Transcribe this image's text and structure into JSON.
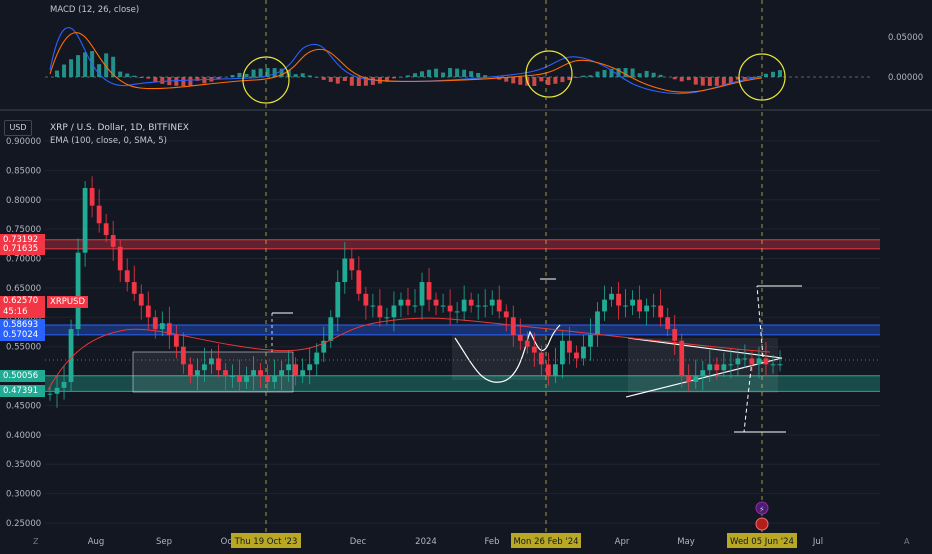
{
  "macd": {
    "title": "MACD (12, 26, close)",
    "ticks": [
      {
        "label": "0.05000",
        "value": 0.05
      },
      {
        "label": "0.00000",
        "value": 0.0
      }
    ]
  },
  "chart_data": {
    "type": "candlestick",
    "symbol": "XRP / U.S. Dollar, 1D, BITFINEX",
    "indicator": "EMA (100, close, 0, SMA, 5)",
    "currency": "USD",
    "ylim": [
      0.23,
      0.94
    ],
    "y_ticks": [
      "0.90000",
      "0.85000",
      "0.80000",
      "0.75000",
      "0.70000",
      "0.65000",
      "0.60000",
      "0.55000",
      "0.50000",
      "0.45000",
      "0.40000",
      "0.35000",
      "0.30000",
      "0.25000"
    ],
    "x_ticks": [
      "Aug",
      "Sep",
      "Oct",
      "Dec",
      "2024",
      "Feb",
      "Apr",
      "May",
      "Jul"
    ],
    "highlighted_dates": [
      "Thu 19 Oct '23",
      "Mon 26 Feb '24",
      "Wed 05 Jun '24"
    ],
    "price_tags": [
      {
        "label": "0.73192",
        "value": 0.7319,
        "color": "#f23645"
      },
      {
        "label": "0.71635",
        "value": 0.7164,
        "color": "#f23645"
      },
      {
        "label": "0.58693",
        "value": 0.5869,
        "color": "#2962ff"
      },
      {
        "label": "0.57024",
        "value": 0.5702,
        "color": "#2962ff"
      },
      {
        "label": "0.50056",
        "value": 0.5006,
        "color": "#22ab94"
      },
      {
        "label": "0.47391",
        "value": 0.4739,
        "color": "#22ab94"
      }
    ],
    "last_price": {
      "label": "0.62570",
      "countdown": "45:16",
      "symbol": "XRPUSD",
      "value": 0.6257
    },
    "zones": [
      {
        "name": "resistance",
        "from": 0.7164,
        "to": 0.7319,
        "color": "#f23645"
      },
      {
        "name": "mid",
        "from": 0.5702,
        "to": 0.5869,
        "color": "#2962ff"
      },
      {
        "name": "support",
        "from": 0.4739,
        "to": 0.5006,
        "color": "#22ab94"
      }
    ],
    "closes": [
      0.47,
      0.48,
      0.49,
      0.58,
      0.71,
      0.82,
      0.79,
      0.76,
      0.74,
      0.72,
      0.68,
      0.66,
      0.64,
      0.62,
      0.6,
      0.58,
      0.59,
      0.57,
      0.55,
      0.52,
      0.5,
      0.51,
      0.52,
      0.53,
      0.51,
      0.5,
      0.5,
      0.49,
      0.5,
      0.51,
      0.5,
      0.49,
      0.5,
      0.51,
      0.52,
      0.5,
      0.51,
      0.52,
      0.54,
      0.56,
      0.6,
      0.66,
      0.7,
      0.68,
      0.64,
      0.62,
      0.62,
      0.6,
      0.6,
      0.62,
      0.63,
      0.62,
      0.62,
      0.66,
      0.63,
      0.62,
      0.62,
      0.61,
      0.61,
      0.63,
      0.62,
      0.62,
      0.62,
      0.63,
      0.61,
      0.6,
      0.57,
      0.56,
      0.55,
      0.54,
      0.52,
      0.5,
      0.52,
      0.56,
      0.54,
      0.53,
      0.55,
      0.57,
      0.61,
      0.63,
      0.64,
      0.62,
      0.62,
      0.63,
      0.61,
      0.62,
      0.62,
      0.6,
      0.58,
      0.56,
      0.5,
      0.49,
      0.5,
      0.51,
      0.52,
      0.51,
      0.52,
      0.52,
      0.53,
      0.53,
      0.52,
      0.53,
      0.52,
      0.52,
      0.52
    ]
  }
}
